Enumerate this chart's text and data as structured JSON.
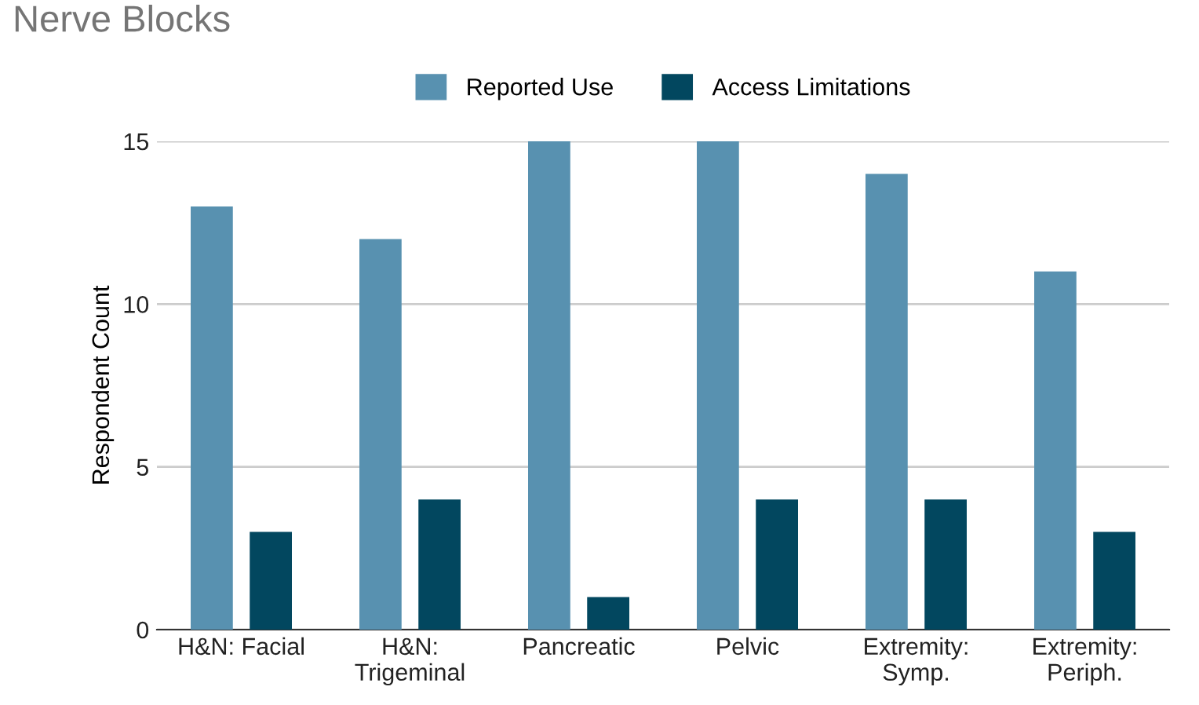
{
  "chart_data": {
    "type": "bar",
    "title": "Nerve Blocks",
    "ylabel": "Respondent Count",
    "categories": [
      "H&N: Facial",
      "H&N:\nTrigeminal",
      "Pancreatic",
      "Pelvic",
      "Extremity:\nSymp.",
      "Extremity:\nPeriph."
    ],
    "series": [
      {
        "name": "Reported Use",
        "color": "#5891b0",
        "values": [
          13,
          12,
          15,
          15,
          14,
          11
        ]
      },
      {
        "name": "Access Limitations",
        "color": "#02475f",
        "values": [
          3,
          4,
          1,
          4,
          4,
          3
        ]
      }
    ],
    "ylim": [
      0,
      15
    ],
    "yticks": [
      0,
      5,
      10,
      15
    ],
    "grid": "y",
    "legend": "top"
  }
}
